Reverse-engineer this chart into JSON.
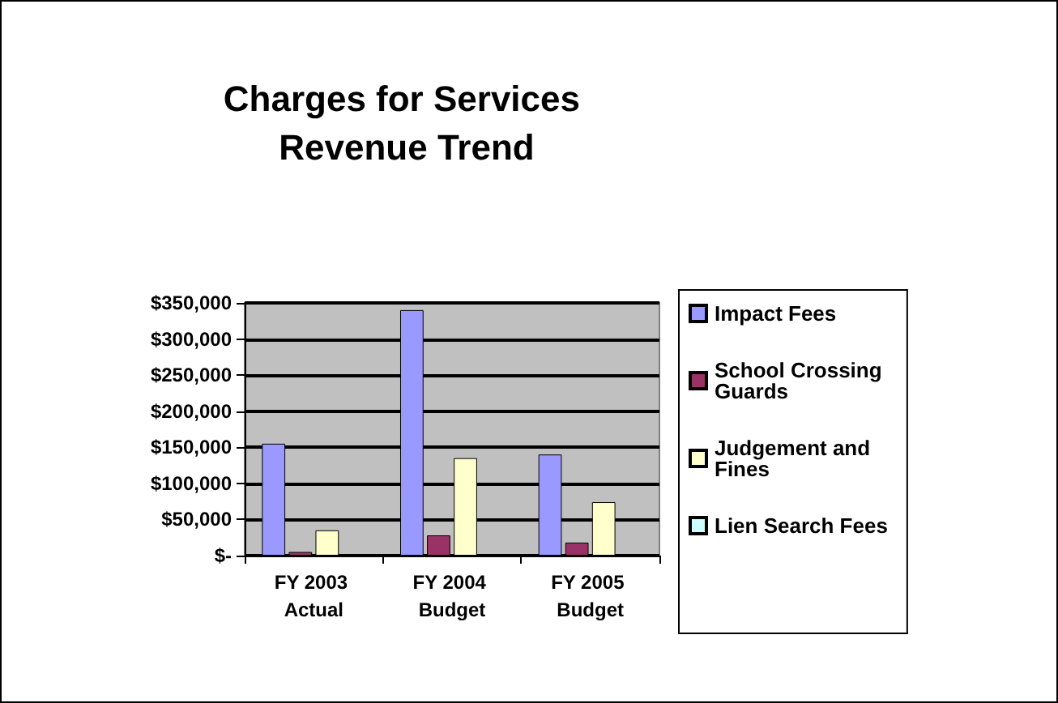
{
  "chart_data": {
    "type": "bar",
    "title": "Charges for Services Revenue Trend",
    "categories": [
      "FY 2003 Actual",
      "FY 2004 Budget",
      "FY 2005 Budget"
    ],
    "series": [
      {
        "name": "Impact Fees",
        "color": "#9999ff",
        "values": [
          155000,
          340000,
          140000
        ]
      },
      {
        "name": "School Crossing Guards",
        "color": "#993366",
        "values": [
          5000,
          28000,
          18000
        ]
      },
      {
        "name": "Judgement and Fines",
        "color": "#ffffcc",
        "values": [
          35000,
          135000,
          74000
        ]
      },
      {
        "name": "Lien Search Fees",
        "color": "#ccffff",
        "values": [
          null,
          null,
          null
        ]
      }
    ],
    "ylim": [
      0,
      350000
    ],
    "yticks": [
      {
        "value": 0,
        "label": "$-"
      },
      {
        "value": 50000,
        "label": "$50,000"
      },
      {
        "value": 100000,
        "label": "$100,000"
      },
      {
        "value": 150000,
        "label": "$150,000"
      },
      {
        "value": 200000,
        "label": "$200,000"
      },
      {
        "value": 250000,
        "label": "$250,000"
      },
      {
        "value": 300000,
        "label": "$300,000"
      },
      {
        "value": 350000,
        "label": "$350,000"
      }
    ],
    "grid": "y",
    "legend": "right"
  }
}
